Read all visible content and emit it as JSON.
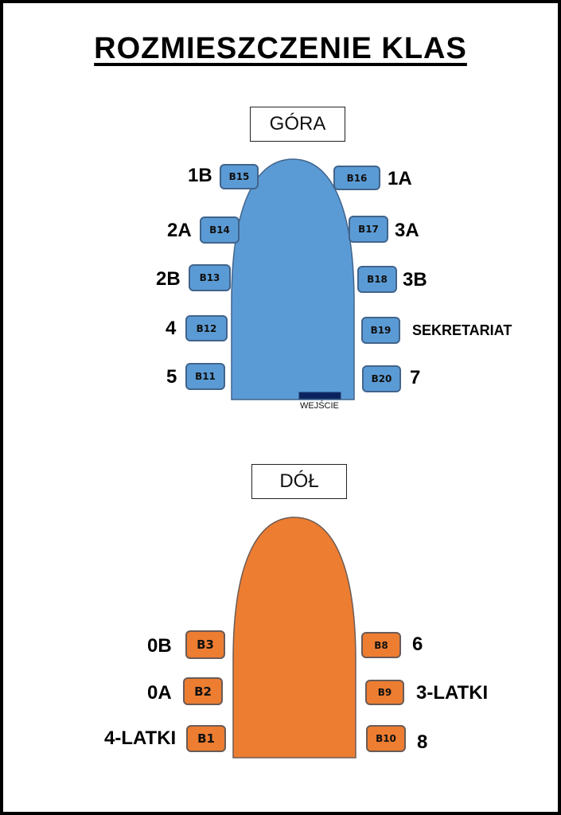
{
  "title": "ROZMIESZCZENIE KLAS",
  "upper": {
    "label": "GÓRA",
    "entrance": "WEJŚCIE",
    "color": "#5b9bd5",
    "rooms": [
      {
        "room": "B15",
        "class": "1B"
      },
      {
        "room": "B16",
        "class": "1A"
      },
      {
        "room": "B14",
        "class": "2A"
      },
      {
        "room": "B17",
        "class": "3A"
      },
      {
        "room": "B13",
        "class": "2B"
      },
      {
        "room": "B18",
        "class": "3B"
      },
      {
        "room": "B12",
        "class": "4"
      },
      {
        "room": "B19",
        "class": "SEKRETARIAT"
      },
      {
        "room": "B11",
        "class": "5"
      },
      {
        "room": "B20",
        "class": "7"
      }
    ]
  },
  "lower": {
    "label": "DÓŁ",
    "color": "#ed7d31",
    "rooms": [
      {
        "room": "B3",
        "class": "0B"
      },
      {
        "room": "B8",
        "class": "6"
      },
      {
        "room": "B2",
        "class": "0A"
      },
      {
        "room": "B9",
        "class": "3-LATKI"
      },
      {
        "room": "B1",
        "class": "4-LATKI"
      },
      {
        "room": "B10",
        "class": "8"
      }
    ]
  }
}
